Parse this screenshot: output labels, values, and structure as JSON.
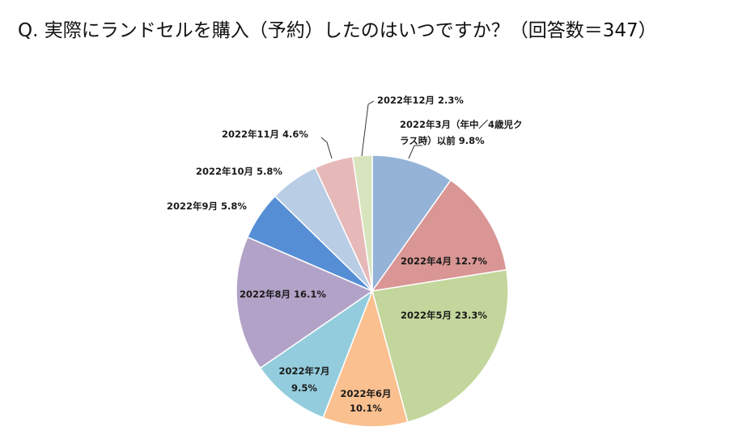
{
  "question": "Q.  実際にランドセルを購入（予約）したのはいつですか？（回答数＝347）",
  "chart_data": {
    "type": "pie",
    "title": "",
    "slices": [
      {
        "label_lines": [
          "2022年3月（年中／4歳児ク",
          "ラス時）以前 9.8%"
        ],
        "value": 9.8,
        "color": "#95b3d7"
      },
      {
        "label_lines": [
          "2022年4月 12.7%"
        ],
        "value": 12.7,
        "color": "#d99694"
      },
      {
        "label_lines": [
          "2022年5月 23.3%"
        ],
        "value": 23.3,
        "color": "#c3d69b"
      },
      {
        "label_lines": [
          "2022年6月",
          "10.1%"
        ],
        "value": 10.1,
        "color": "#fac090"
      },
      {
        "label_lines": [
          "2022年7月",
          "9.5%"
        ],
        "value": 9.5,
        "color": "#93cddd"
      },
      {
        "label_lines": [
          "2022年8月 16.1%"
        ],
        "value": 16.1,
        "color": "#b3a2c7"
      },
      {
        "label_lines": [
          "2022年9月 5.8%"
        ],
        "value": 5.8,
        "color": "#558ed5"
      },
      {
        "label_lines": [
          "2022年10月 5.8%"
        ],
        "value": 5.8,
        "color": "#b9cde5"
      },
      {
        "label_lines": [
          "2022年11月 4.6%"
        ],
        "value": 4.6,
        "color": "#e6b9b8"
      },
      {
        "label_lines": [
          "2022年12月 2.3%"
        ],
        "value": 2.3,
        "color": "#d7e4bd"
      }
    ]
  }
}
